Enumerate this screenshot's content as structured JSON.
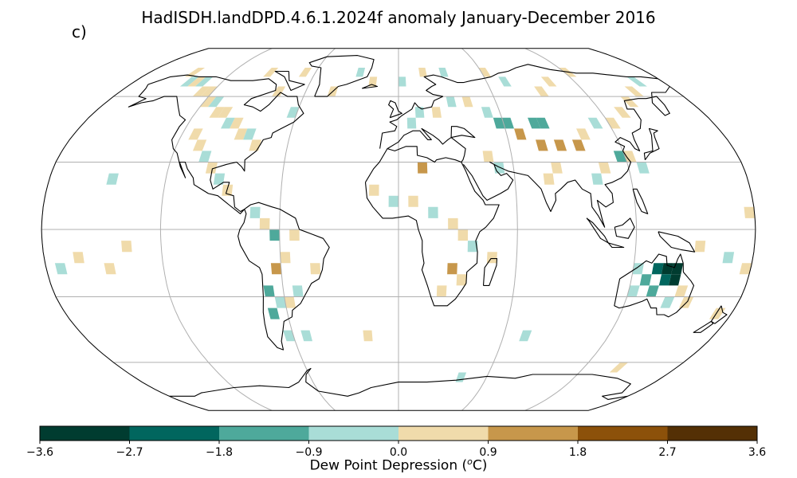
{
  "title": "HadISDH.landDPD.4.6.1.2024f anomaly January-December 2016",
  "panel_label": "c)",
  "colorbar": {
    "label_prefix": "Dew Point Depression (",
    "label_sup": "o",
    "label_suffix": "C)",
    "ticks": [
      "−3.6",
      "−2.7",
      "−1.8",
      "−0.9",
      "0.0",
      "0.9",
      "1.8",
      "2.7",
      "3.6"
    ],
    "tick_values": [
      -3.6,
      -2.7,
      -1.8,
      -0.9,
      0.0,
      0.9,
      1.8,
      2.7,
      3.6
    ],
    "colors": [
      "#003c30",
      "#01665e",
      "#4ea99b",
      "#a9ddd7",
      "#f0dbab",
      "#c7974b",
      "#8c510a",
      "#543005"
    ]
  },
  "chart_data": {
    "type": "heatmap",
    "projection": "Robinson",
    "grid_resolution_deg": 5,
    "value_unit": "°C",
    "gridlines": "on",
    "grid_lon": [
      -180,
      -120,
      -60,
      0,
      60,
      120,
      180
    ],
    "grid_lat": [
      -60,
      -30,
      0,
      30,
      60
    ],
    "cells": [
      {
        "lon": -150,
        "lat": 70,
        "v": 0.4
      },
      {
        "lon": -145,
        "lat": 65,
        "v": -0.4
      },
      {
        "lon": -140,
        "lat": 65,
        "v": 0.4
      },
      {
        "lon": -135,
        "lat": 65,
        "v": -0.4
      },
      {
        "lon": -130,
        "lat": 60,
        "v": 0.4
      },
      {
        "lon": -125,
        "lat": 60,
        "v": 0.4
      },
      {
        "lon": -120,
        "lat": 55,
        "v": 0.4
      },
      {
        "lon": -115,
        "lat": 55,
        "v": -0.4
      },
      {
        "lon": -110,
        "lat": 50,
        "v": 0.4
      },
      {
        "lon": -105,
        "lat": 50,
        "v": 0.4
      },
      {
        "lon": -100,
        "lat": 45,
        "v": -0.4
      },
      {
        "lon": -95,
        "lat": 45,
        "v": 0.4
      },
      {
        "lon": -90,
        "lat": 40,
        "v": 0.4
      },
      {
        "lon": -85,
        "lat": 40,
        "v": -0.4
      },
      {
        "lon": -80,
        "lat": 35,
        "v": 0.4
      },
      {
        "lon": -115,
        "lat": 40,
        "v": 0.4
      },
      {
        "lon": -110,
        "lat": 35,
        "v": 0.4
      },
      {
        "lon": -105,
        "lat": 30,
        "v": -0.4
      },
      {
        "lon": -100,
        "lat": 25,
        "v": 0.4
      },
      {
        "lon": -95,
        "lat": 20,
        "v": -0.4
      },
      {
        "lon": -90,
        "lat": 15,
        "v": 0.4
      },
      {
        "lon": -75,
        "lat": 5,
        "v": -0.4
      },
      {
        "lon": -70,
        "lat": 0,
        "v": 0.4
      },
      {
        "lon": -65,
        "lat": -5,
        "v": -1.2
      },
      {
        "lon": -55,
        "lat": -5,
        "v": 0.4
      },
      {
        "lon": -60,
        "lat": -15,
        "v": 0.4
      },
      {
        "lon": -65,
        "lat": -20,
        "v": 1.2
      },
      {
        "lon": -70,
        "lat": -30,
        "v": -1.2
      },
      {
        "lon": -70,
        "lat": -40,
        "v": -1.2
      },
      {
        "lon": -65,
        "lat": -35,
        "v": -0.4
      },
      {
        "lon": -60,
        "lat": -35,
        "v": 0.4
      },
      {
        "lon": -55,
        "lat": -30,
        "v": -0.4
      },
      {
        "lon": -45,
        "lat": -20,
        "v": 0.4
      },
      {
        "lon": -165,
        "lat": -15,
        "v": 0.4
      },
      {
        "lon": -175,
        "lat": -20,
        "v": -0.4
      },
      {
        "lon": -150,
        "lat": -20,
        "v": 0.4
      },
      {
        "lon": -140,
        "lat": -10,
        "v": 0.4
      },
      {
        "lon": -150,
        "lat": 20,
        "v": -0.4
      },
      {
        "lon": -15,
        "lat": 15,
        "v": 0.4
      },
      {
        "lon": -5,
        "lat": 10,
        "v": -0.4
      },
      {
        "lon": 5,
        "lat": 10,
        "v": 0.4
      },
      {
        "lon": 10,
        "lat": 25,
        "v": 1.2
      },
      {
        "lon": 15,
        "lat": 5,
        "v": -0.4
      },
      {
        "lon": 25,
        "lat": 0,
        "v": 0.4
      },
      {
        "lon": 30,
        "lat": -5,
        "v": 0.4
      },
      {
        "lon": 35,
        "lat": -10,
        "v": -0.4
      },
      {
        "lon": 25,
        "lat": -20,
        "v": 1.2
      },
      {
        "lon": 30,
        "lat": -25,
        "v": 0.4
      },
      {
        "lon": 20,
        "lat": -30,
        "v": 0.4
      },
      {
        "lon": 45,
        "lat": -15,
        "v": 0.4
      },
      {
        "lon": 5,
        "lat": 45,
        "v": -0.4
      },
      {
        "lon": 10,
        "lat": 50,
        "v": -0.4
      },
      {
        "lon": 20,
        "lat": 50,
        "v": 0.4
      },
      {
        "lon": 30,
        "lat": 55,
        "v": -0.4
      },
      {
        "lon": 40,
        "lat": 55,
        "v": 0.4
      },
      {
        "lon": 50,
        "lat": 50,
        "v": -0.4
      },
      {
        "lon": 55,
        "lat": 45,
        "v": -1.2
      },
      {
        "lon": 60,
        "lat": 45,
        "v": -1.2
      },
      {
        "lon": 75,
        "lat": 45,
        "v": -1.2
      },
      {
        "lon": 80,
        "lat": 45,
        "v": -1.2
      },
      {
        "lon": 65,
        "lat": 40,
        "v": 1.2
      },
      {
        "lon": 75,
        "lat": 35,
        "v": 1.2
      },
      {
        "lon": 85,
        "lat": 35,
        "v": 1.2
      },
      {
        "lon": 95,
        "lat": 35,
        "v": 1.2
      },
      {
        "lon": 100,
        "lat": 40,
        "v": 0.4
      },
      {
        "lon": 110,
        "lat": 45,
        "v": -0.4
      },
      {
        "lon": 120,
        "lat": 45,
        "v": 0.4
      },
      {
        "lon": 130,
        "lat": 50,
        "v": 0.4
      },
      {
        "lon": 140,
        "lat": 55,
        "v": 0.4
      },
      {
        "lon": 150,
        "lat": 60,
        "v": 0.4
      },
      {
        "lon": 160,
        "lat": 65,
        "v": -0.4
      },
      {
        "lon": 90,
        "lat": 60,
        "v": 0.4
      },
      {
        "lon": 100,
        "lat": 65,
        "v": 0.4
      },
      {
        "lon": 70,
        "lat": 65,
        "v": -0.4
      },
      {
        "lon": 80,
        "lat": 25,
        "v": 0.4
      },
      {
        "lon": 75,
        "lat": 20,
        "v": 0.4
      },
      {
        "lon": 100,
        "lat": 20,
        "v": -0.4
      },
      {
        "lon": 105,
        "lat": 25,
        "v": 0.4
      },
      {
        "lon": 115,
        "lat": 30,
        "v": -1.2
      },
      {
        "lon": 120,
        "lat": 30,
        "v": 0.4
      },
      {
        "lon": 125,
        "lat": 25,
        "v": -0.4
      },
      {
        "lon": 45,
        "lat": 30,
        "v": 0.4
      },
      {
        "lon": 50,
        "lat": 25,
        "v": -0.4
      },
      {
        "lon": 120,
        "lat": -20,
        "v": -0.4
      },
      {
        "lon": 125,
        "lat": -25,
        "v": -1.2
      },
      {
        "lon": 130,
        "lat": -20,
        "v": -2.2
      },
      {
        "lon": 135,
        "lat": -20,
        "v": -3.2
      },
      {
        "lon": 140,
        "lat": -20,
        "v": -3.2
      },
      {
        "lon": 140,
        "lat": -25,
        "v": -3.2
      },
      {
        "lon": 135,
        "lat": -25,
        "v": -2.2
      },
      {
        "lon": 130,
        "lat": -30,
        "v": -1.2
      },
      {
        "lon": 145,
        "lat": -30,
        "v": 0.4
      },
      {
        "lon": 150,
        "lat": -35,
        "v": 0.4
      },
      {
        "lon": 140,
        "lat": -35,
        "v": -0.4
      },
      {
        "lon": 120,
        "lat": -30,
        "v": -0.4
      },
      {
        "lon": 170,
        "lat": -40,
        "v": 0.4
      },
      {
        "lon": 150,
        "lat": -10,
        "v": 0.4
      },
      {
        "lon": 165,
        "lat": -15,
        "v": -0.4
      },
      {
        "lon": 175,
        "lat": -20,
        "v": 0.4
      },
      {
        "lon": 175,
        "lat": 5,
        "v": 0.4
      },
      {
        "lon": -65,
        "lat": -50,
        "v": -0.4
      },
      {
        "lon": -55,
        "lat": -50,
        "v": -0.4
      },
      {
        "lon": -20,
        "lat": -50,
        "v": 0.4
      },
      {
        "lon": 40,
        "lat": -70,
        "v": -0.4
      },
      {
        "lon": 140,
        "lat": -65,
        "v": 0.4
      },
      {
        "lon": 70,
        "lat": -50,
        "v": -0.4
      },
      {
        "lon": 0,
        "lat": 65,
        "v": -0.4
      },
      {
        "lon": -20,
        "lat": 65,
        "v": 0.4
      },
      {
        "lon": 15,
        "lat": 70,
        "v": 0.4
      },
      {
        "lon": 30,
        "lat": 70,
        "v": -0.4
      },
      {
        "lon": 60,
        "lat": 70,
        "v": 0.4
      },
      {
        "lon": 120,
        "lat": 70,
        "v": 0.4
      },
      {
        "lon": -45,
        "lat": 60,
        "v": 0.4
      },
      {
        "lon": -30,
        "lat": 70,
        "v": -0.4
      },
      {
        "lon": -70,
        "lat": 70,
        "v": 0.4
      },
      {
        "lon": -95,
        "lat": 70,
        "v": 0.4
      },
      {
        "lon": -80,
        "lat": 60,
        "v": 0.4
      },
      {
        "lon": -65,
        "lat": 50,
        "v": -0.4
      }
    ]
  }
}
